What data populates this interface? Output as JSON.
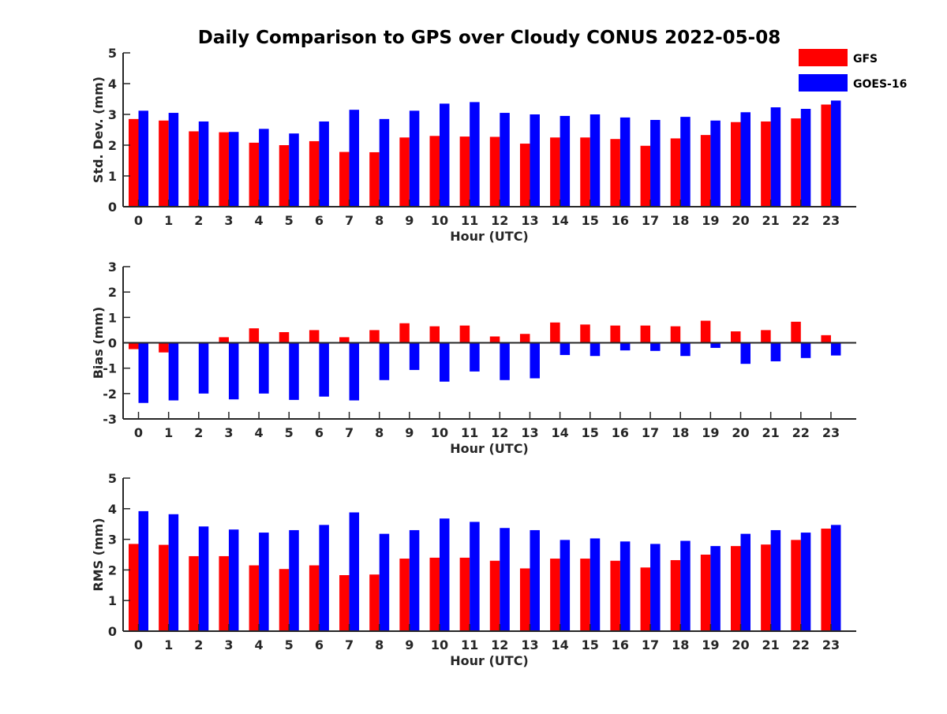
{
  "title": "Daily Comparison to GPS over Cloudy CONUS 2022-05-08",
  "colors": {
    "GFS": "#ff0000",
    "GOES-16": "#0000ff",
    "axis": "#262626"
  },
  "legend": {
    "placement": "top-right",
    "entries": [
      "GFS",
      "GOES-16"
    ]
  },
  "chart_data": [
    {
      "type": "bar",
      "xlabel": "Hour (UTC)",
      "ylabel": "Std. Dev. (mm)",
      "ylim": [
        0,
        5
      ],
      "yticks": [
        0,
        1,
        2,
        3,
        4,
        5
      ],
      "categories": [
        "0",
        "1",
        "2",
        "3",
        "4",
        "5",
        "6",
        "7",
        "8",
        "9",
        "10",
        "11",
        "12",
        "13",
        "14",
        "15",
        "16",
        "17",
        "18",
        "19",
        "20",
        "21",
        "22",
        "23"
      ],
      "series": [
        {
          "name": "GFS",
          "values": [
            2.85,
            2.8,
            2.45,
            2.42,
            2.08,
            2.0,
            2.13,
            1.78,
            1.77,
            2.25,
            2.3,
            2.28,
            2.27,
            2.05,
            2.25,
            2.25,
            2.2,
            1.98,
            2.22,
            2.33,
            2.75,
            2.77,
            2.87,
            3.32
          ]
        },
        {
          "name": "GOES-16",
          "values": [
            3.12,
            3.05,
            2.77,
            2.43,
            2.53,
            2.38,
            2.77,
            3.15,
            2.85,
            3.12,
            3.35,
            3.4,
            3.05,
            3.0,
            2.95,
            3.0,
            2.9,
            2.82,
            2.92,
            2.8,
            3.07,
            3.23,
            3.18,
            3.45
          ]
        }
      ]
    },
    {
      "type": "bar",
      "xlabel": "Hour (UTC)",
      "ylabel": "Bias (mm)",
      "ylim": [
        -3,
        3
      ],
      "yticks": [
        -3,
        -2,
        -1,
        0,
        1,
        2,
        3
      ],
      "categories": [
        "0",
        "1",
        "2",
        "3",
        "4",
        "5",
        "6",
        "7",
        "8",
        "9",
        "10",
        "11",
        "12",
        "13",
        "14",
        "15",
        "16",
        "17",
        "18",
        "19",
        "20",
        "21",
        "22",
        "23"
      ],
      "series": [
        {
          "name": "GFS",
          "values": [
            -0.25,
            -0.38,
            0.0,
            0.22,
            0.57,
            0.42,
            0.5,
            0.22,
            0.5,
            0.77,
            0.65,
            0.68,
            0.25,
            0.35,
            0.8,
            0.72,
            0.68,
            0.68,
            0.65,
            0.87,
            0.45,
            0.5,
            0.83,
            0.3
          ]
        },
        {
          "name": "GOES-16",
          "values": [
            -2.37,
            -2.27,
            -2.0,
            -2.23,
            -2.0,
            -2.25,
            -2.12,
            -2.27,
            -1.47,
            -1.07,
            -1.53,
            -1.13,
            -1.47,
            -1.4,
            -0.48,
            -0.52,
            -0.3,
            -0.32,
            -0.52,
            -0.2,
            -0.83,
            -0.73,
            -0.6,
            -0.5
          ]
        }
      ]
    },
    {
      "type": "bar",
      "xlabel": "Hour (UTC)",
      "ylabel": "RMS (mm)",
      "ylim": [
        0,
        5
      ],
      "yticks": [
        0,
        1,
        2,
        3,
        4,
        5
      ],
      "categories": [
        "0",
        "1",
        "2",
        "3",
        "4",
        "5",
        "6",
        "7",
        "8",
        "9",
        "10",
        "11",
        "12",
        "13",
        "14",
        "15",
        "16",
        "17",
        "18",
        "19",
        "20",
        "21",
        "22",
        "23"
      ],
      "series": [
        {
          "name": "GFS",
          "values": [
            2.85,
            2.82,
            2.45,
            2.45,
            2.15,
            2.03,
            2.15,
            1.83,
            1.85,
            2.37,
            2.4,
            2.4,
            2.3,
            2.05,
            2.37,
            2.37,
            2.3,
            2.08,
            2.32,
            2.5,
            2.78,
            2.83,
            2.98,
            3.35
          ]
        },
        {
          "name": "GOES-16",
          "values": [
            3.92,
            3.82,
            3.42,
            3.32,
            3.22,
            3.3,
            3.47,
            3.88,
            3.18,
            3.3,
            3.68,
            3.57,
            3.37,
            3.3,
            2.98,
            3.03,
            2.93,
            2.85,
            2.95,
            2.78,
            3.18,
            3.3,
            3.22,
            3.47
          ]
        }
      ]
    }
  ]
}
